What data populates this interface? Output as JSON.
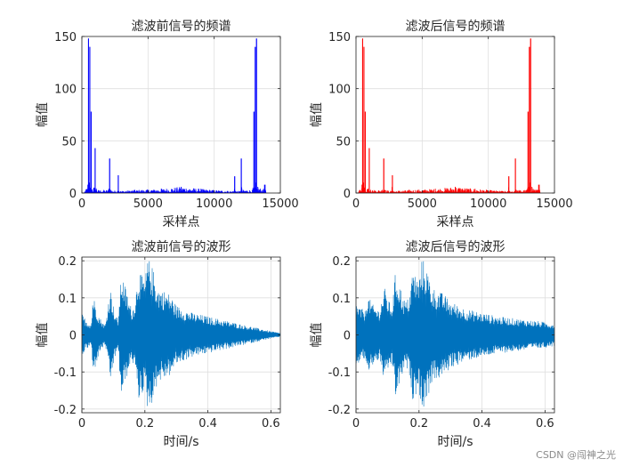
{
  "watermark": "CSDN @闯神之光",
  "chart_data": [
    {
      "type": "line",
      "title": "滤波前信号的频谱",
      "xlabel": "采样点",
      "ylabel": "幅值",
      "xlim": [
        0,
        15000
      ],
      "ylim": [
        0,
        150
      ],
      "xticks": [
        0,
        5000,
        10000,
        15000
      ],
      "yticks": [
        0,
        50,
        100,
        150
      ],
      "grid": true,
      "series": [
        {
          "color": "#0000ff",
          "x": [
            0,
            300,
            450,
            500,
            550,
            600,
            650,
            700,
            900,
            1000,
            1100,
            2000,
            2100,
            2200,
            2700,
            2750,
            2800,
            4000,
            6000,
            7500,
            9000,
            11000,
            11500,
            11550,
            11600,
            12000,
            12050,
            12100,
            12900,
            13000,
            13050,
            13100,
            13150,
            13200,
            13300,
            13700,
            13800,
            13850,
            13900
          ],
          "y": [
            0,
            3,
            8,
            148,
            10,
            140,
            5,
            78,
            4,
            43,
            3,
            3,
            33,
            3,
            2,
            17,
            2,
            3,
            4,
            6,
            4,
            2,
            2,
            16,
            2,
            2,
            33,
            3,
            3,
            78,
            5,
            140,
            10,
            148,
            6,
            3,
            8,
            8,
            0
          ]
        }
      ]
    },
    {
      "type": "line",
      "title": "滤波后信号的频谱",
      "xlabel": "采样点",
      "ylabel": "幅值",
      "xlim": [
        0,
        15000
      ],
      "ylim": [
        0,
        150
      ],
      "xticks": [
        0,
        5000,
        10000,
        15000
      ],
      "yticks": [
        0,
        50,
        100,
        150
      ],
      "grid": true,
      "series": [
        {
          "color": "#ff0000",
          "x": [
            0,
            300,
            450,
            500,
            550,
            600,
            650,
            700,
            900,
            1000,
            1100,
            2000,
            2100,
            2200,
            2700,
            2750,
            2800,
            4000,
            6000,
            7500,
            9000,
            11000,
            11500,
            11550,
            11600,
            12000,
            12050,
            12100,
            12900,
            13000,
            13050,
            13100,
            13150,
            13200,
            13300,
            13700,
            13800,
            13850,
            13900
          ],
          "y": [
            0,
            3,
            8,
            148,
            10,
            140,
            5,
            78,
            4,
            43,
            3,
            3,
            33,
            3,
            2,
            17,
            2,
            3,
            4,
            6,
            4,
            2,
            2,
            16,
            2,
            2,
            33,
            3,
            3,
            78,
            5,
            140,
            10,
            148,
            6,
            3,
            8,
            8,
            0
          ]
        }
      ]
    },
    {
      "type": "line",
      "title": "滤波前信号的波形",
      "xlabel": "时间/s",
      "ylabel": "幅值",
      "xlim": [
        0,
        0.63
      ],
      "ylim": [
        -0.21,
        0.21
      ],
      "xticks": [
        0,
        0.2,
        0.4,
        0.6
      ],
      "yticks": [
        -0.2,
        -0.1,
        0,
        0.1,
        0.2
      ],
      "grid": true,
      "series": [
        {
          "color": "#0072bd",
          "x": [
            0,
            0.005,
            0.02,
            0.03,
            0.035,
            0.055,
            0.07,
            0.075,
            0.09,
            0.105,
            0.115,
            0.125,
            0.135,
            0.15,
            0.16,
            0.17,
            0.18,
            0.19,
            0.2,
            0.21,
            0.225,
            0.24,
            0.26,
            0.28,
            0.3,
            0.35,
            0.4,
            0.45,
            0.5,
            0.55,
            0.6,
            0.63
          ],
          "y": [
            0.06,
            0.05,
            0.035,
            0.03,
            0.11,
            0.05,
            0.03,
            0.03,
            0.13,
            0.06,
            0.04,
            0.17,
            0.14,
            0.09,
            0.07,
            0.1,
            0.18,
            0.16,
            0.15,
            0.21,
            0.18,
            0.13,
            0.12,
            0.11,
            0.08,
            0.06,
            0.05,
            0.04,
            0.03,
            0.02,
            0.01,
            0.005
          ]
        }
      ]
    },
    {
      "type": "line",
      "title": "滤波后信号的波形",
      "xlabel": "时间/s",
      "ylabel": "幅值",
      "xlim": [
        0,
        0.63
      ],
      "ylim": [
        -0.21,
        0.21
      ],
      "xticks": [
        0,
        0.2,
        0.4,
        0.6
      ],
      "yticks": [
        -0.2,
        -0.1,
        0,
        0.1,
        0.2
      ],
      "grid": true,
      "series": [
        {
          "color": "#0072bd",
          "x": [
            0,
            0.005,
            0.02,
            0.03,
            0.035,
            0.055,
            0.07,
            0.075,
            0.09,
            0.105,
            0.115,
            0.125,
            0.135,
            0.15,
            0.16,
            0.17,
            0.18,
            0.19,
            0.2,
            0.21,
            0.225,
            0.24,
            0.26,
            0.28,
            0.3,
            0.35,
            0.4,
            0.45,
            0.5,
            0.55,
            0.6,
            0.63
          ],
          "y": [
            0.09,
            0.08,
            0.07,
            0.065,
            0.11,
            0.08,
            0.07,
            0.07,
            0.13,
            0.09,
            0.08,
            0.17,
            0.15,
            0.1,
            0.09,
            0.11,
            0.18,
            0.16,
            0.15,
            0.21,
            0.18,
            0.13,
            0.12,
            0.11,
            0.09,
            0.07,
            0.06,
            0.05,
            0.045,
            0.04,
            0.035,
            0.03
          ]
        }
      ]
    }
  ]
}
